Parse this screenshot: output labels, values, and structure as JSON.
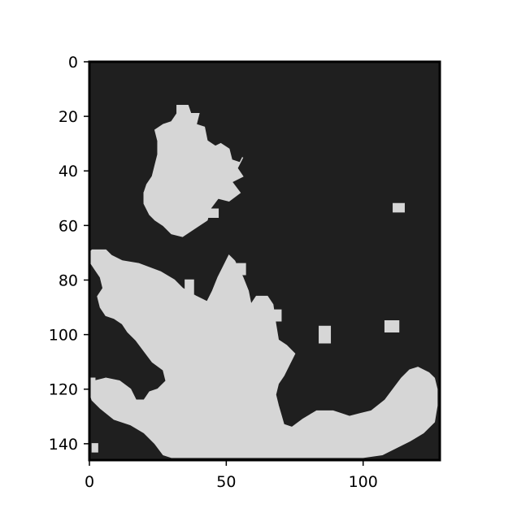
{
  "chart_data": {
    "type": "heatmap",
    "title": "",
    "xlabel": "",
    "ylabel": "",
    "xlim": [
      0,
      128
    ],
    "ylim": [
      146,
      0
    ],
    "x_ticks": [
      "0",
      "50",
      "100"
    ],
    "x_tick_values": [
      0,
      50,
      100
    ],
    "y_ticks": [
      "0",
      "20",
      "40",
      "60",
      "80",
      "100",
      "120",
      "140"
    ],
    "y_tick_values": [
      0,
      20,
      40,
      60,
      80,
      100,
      120,
      140
    ],
    "values_meaning": "binary mask: 1 = light region, 0 = dark background",
    "colors": {
      "background": "#1f1f1f",
      "foreground": "#d6d6d6",
      "frame": "#000000"
    },
    "regions": [
      [
        [
          32,
          16
        ],
        [
          36,
          16
        ],
        [
          37,
          19
        ],
        [
          40,
          19
        ],
        [
          39,
          23
        ],
        [
          42,
          24
        ],
        [
          43,
          29
        ],
        [
          46,
          31
        ],
        [
          48,
          30
        ],
        [
          51,
          32
        ],
        [
          52,
          36
        ],
        [
          55,
          37
        ],
        [
          56,
          35
        ],
        [
          54,
          39
        ],
        [
          56,
          42
        ],
        [
          52,
          44
        ],
        [
          55,
          48
        ],
        [
          51,
          51
        ],
        [
          47,
          50
        ],
        [
          44,
          54
        ],
        [
          43,
          58
        ],
        [
          40,
          60
        ],
        [
          34,
          64
        ],
        [
          30,
          63
        ],
        [
          27,
          60
        ],
        [
          24,
          58
        ],
        [
          22,
          56
        ],
        [
          20,
          52
        ],
        [
          20,
          48
        ],
        [
          21,
          45
        ],
        [
          23,
          42
        ],
        [
          24,
          38
        ],
        [
          25,
          34
        ],
        [
          25,
          29
        ],
        [
          24,
          25
        ],
        [
          27,
          23
        ],
        [
          30,
          22
        ],
        [
          32,
          19
        ]
      ],
      [
        [
          20,
          48
        ],
        [
          22,
          48
        ],
        [
          22,
          51
        ],
        [
          20,
          51
        ]
      ],
      [
        [
          37,
          54
        ],
        [
          40,
          54
        ],
        [
          40,
          57
        ],
        [
          37,
          57
        ]
      ],
      [
        [
          42,
          54
        ],
        [
          47,
          54
        ],
        [
          47,
          57
        ],
        [
          42,
          57
        ]
      ],
      [
        [
          1,
          69
        ],
        [
          6,
          69
        ],
        [
          8,
          71
        ],
        [
          12,
          73
        ],
        [
          18,
          74
        ],
        [
          26,
          77
        ],
        [
          31,
          80
        ],
        [
          34,
          83
        ],
        [
          39,
          86
        ],
        [
          43,
          88
        ],
        [
          45,
          84
        ],
        [
          47,
          79
        ],
        [
          49,
          75
        ],
        [
          51,
          71
        ],
        [
          53,
          73
        ],
        [
          56,
          79
        ],
        [
          58,
          84
        ],
        [
          59,
          89
        ],
        [
          61,
          86
        ],
        [
          65,
          86
        ],
        [
          67,
          89
        ],
        [
          68,
          96
        ],
        [
          69,
          102
        ],
        [
          72,
          104
        ],
        [
          75,
          107
        ],
        [
          73,
          111
        ],
        [
          71,
          115
        ],
        [
          69,
          118
        ],
        [
          68,
          122
        ],
        [
          69,
          126
        ],
        [
          71,
          133
        ],
        [
          74,
          134
        ],
        [
          78,
          131
        ],
        [
          83,
          128
        ],
        [
          89,
          128
        ],
        [
          95,
          130
        ],
        [
          99,
          129
        ],
        [
          103,
          128
        ],
        [
          108,
          124
        ],
        [
          111,
          120
        ],
        [
          114,
          116
        ],
        [
          117,
          113
        ],
        [
          120,
          112
        ],
        [
          124,
          114
        ],
        [
          126,
          116
        ],
        [
          127,
          120
        ],
        [
          127,
          126
        ],
        [
          126,
          132
        ],
        [
          122,
          136
        ],
        [
          117,
          139
        ],
        [
          113,
          141
        ],
        [
          107,
          144
        ],
        [
          100,
          145
        ],
        [
          90,
          145
        ],
        [
          80,
          145
        ],
        [
          70,
          145
        ],
        [
          60,
          145
        ],
        [
          50,
          145
        ],
        [
          40,
          145
        ],
        [
          30,
          145
        ],
        [
          27,
          144
        ],
        [
          24,
          140
        ],
        [
          20,
          136
        ],
        [
          15,
          133
        ],
        [
          9,
          131
        ],
        [
          4,
          127
        ],
        [
          1,
          124
        ],
        [
          0,
          121
        ],
        [
          2,
          117
        ],
        [
          6,
          116
        ],
        [
          11,
          117
        ],
        [
          15,
          120
        ],
        [
          17,
          124
        ],
        [
          20,
          124
        ],
        [
          22,
          121
        ],
        [
          25,
          120
        ],
        [
          28,
          117
        ],
        [
          27,
          113
        ],
        [
          23,
          110
        ],
        [
          20,
          106
        ],
        [
          17,
          102
        ],
        [
          14,
          99
        ],
        [
          12,
          96
        ],
        [
          9,
          94
        ],
        [
          6,
          93
        ],
        [
          4,
          90
        ],
        [
          3,
          86
        ],
        [
          5,
          83
        ],
        [
          4,
          79
        ],
        [
          2,
          76
        ],
        [
          0,
          73
        ],
        [
          0,
          70
        ]
      ],
      [
        [
          66,
          91
        ],
        [
          70,
          91
        ],
        [
          70,
          95
        ],
        [
          66,
          95
        ]
      ],
      [
        [
          84,
          97
        ],
        [
          88,
          97
        ],
        [
          88,
          103
        ],
        [
          84,
          103
        ]
      ],
      [
        [
          108,
          95
        ],
        [
          113,
          95
        ],
        [
          113,
          99
        ],
        [
          108,
          99
        ]
      ],
      [
        [
          111,
          52
        ],
        [
          115,
          52
        ],
        [
          115,
          55
        ],
        [
          111,
          55
        ]
      ],
      [
        [
          35,
          80
        ],
        [
          38,
          80
        ],
        [
          38,
          85
        ],
        [
          35,
          85
        ]
      ],
      [
        [
          54,
          74
        ],
        [
          57,
          74
        ],
        [
          57,
          78
        ],
        [
          54,
          78
        ]
      ],
      [
        [
          0,
          116
        ],
        [
          2,
          116
        ],
        [
          2,
          120
        ],
        [
          0,
          120
        ]
      ],
      [
        [
          1,
          140
        ],
        [
          3,
          140
        ],
        [
          3,
          143
        ],
        [
          1,
          143
        ]
      ]
    ]
  }
}
